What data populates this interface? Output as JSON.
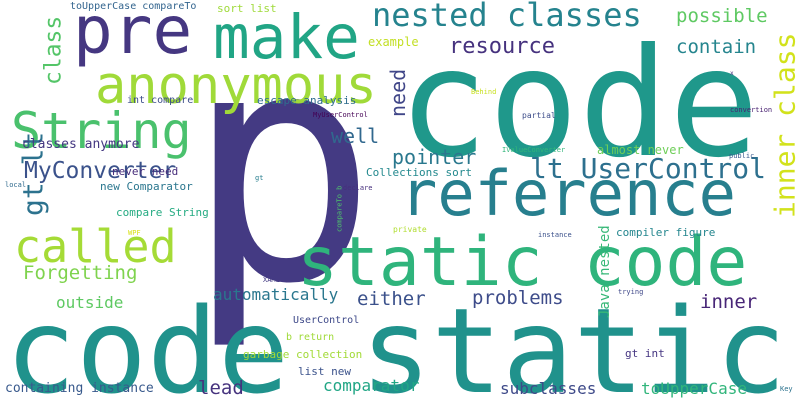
{
  "words": [
    {
      "text": "p",
      "color": "#443a83"
    },
    {
      "text": "code",
      "color": "#1f988b"
    },
    {
      "text": "code static",
      "color": "#20928c"
    },
    {
      "text": "pre",
      "color": "#453781"
    },
    {
      "text": "make",
      "color": "#21a585"
    },
    {
      "text": "anonymous",
      "color": "#a0da39"
    },
    {
      "text": "static code",
      "color": "#2fb47c"
    },
    {
      "text": "reference",
      "color": "#277f8e"
    },
    {
      "text": "String",
      "color": "#4ac16d"
    },
    {
      "text": "called",
      "color": "#a5db36"
    },
    {
      "text": "nested classes",
      "color": "#25838e"
    },
    {
      "text": "lt UserControl",
      "color": "#2d708e"
    },
    {
      "text": "inner class",
      "color": "#d2e21b"
    },
    {
      "text": "MyConverter",
      "color": "#3b528b"
    },
    {
      "text": "gt lt",
      "color": "#2c728e"
    },
    {
      "text": "resource",
      "color": "#46327e"
    },
    {
      "text": "class",
      "color": "#54c568"
    },
    {
      "text": "possible",
      "color": "#5ec962"
    },
    {
      "text": "contain",
      "color": "#25858e"
    },
    {
      "text": "well",
      "color": "#31688e"
    },
    {
      "text": "pointer",
      "color": "#2a788e"
    },
    {
      "text": "need",
      "color": "#404688"
    },
    {
      "text": "Forgetting",
      "color": "#7fd34e"
    },
    {
      "text": "problems",
      "color": "#3e4c8a"
    },
    {
      "text": "inner",
      "color": "#482677"
    },
    {
      "text": "either",
      "color": "#3b518b"
    },
    {
      "text": "lead",
      "color": "#46337e"
    },
    {
      "text": "automatically",
      "color": "#2a778e"
    },
    {
      "text": "outside",
      "color": "#5ec962"
    },
    {
      "text": "comparator",
      "color": "#21a685"
    },
    {
      "text": "subclasses",
      "color": "#3e4a89"
    },
    {
      "text": "toUpperCase",
      "color": "#31b57b"
    },
    {
      "text": "containing instance",
      "color": "#38598c"
    },
    {
      "text": "classes anymore",
      "color": "#453882"
    },
    {
      "text": "Java nested",
      "color": "#37b878"
    },
    {
      "text": "example",
      "color": "#c2df23"
    },
    {
      "text": "sort list",
      "color": "#9fda3a"
    },
    {
      "text": "toUpperCase compareTo",
      "color": "#32648e"
    },
    {
      "text": "int compare",
      "color": "#3d4e8a"
    },
    {
      "text": "escape analysis",
      "color": "#2f6c8e"
    },
    {
      "text": "Collections sort",
      "color": "#23898e"
    },
    {
      "text": "almost never",
      "color": "#6ece58"
    },
    {
      "text": "compiler figure",
      "color": "#24868e"
    },
    {
      "text": "garbage collection",
      "color": "#a2da37"
    },
    {
      "text": "new Comparator",
      "color": "#2a768e"
    },
    {
      "text": "never need",
      "color": "#472d7b"
    },
    {
      "text": "compare String",
      "color": "#25ab82"
    },
    {
      "text": "list new",
      "color": "#3b528b"
    },
    {
      "text": "gt int",
      "color": "#453581"
    },
    {
      "text": "UserControl",
      "color": "#3e4989"
    },
    {
      "text": "b return",
      "color": "#a0da39"
    },
    {
      "text": "IValueConverter",
      "color": "#32b67a"
    },
    {
      "text": "MyUserControl",
      "color": "#440154"
    },
    {
      "text": "compareTo b",
      "color": "#4ec36b"
    },
    {
      "text": "partial",
      "color": "#3d4d8a"
    },
    {
      "text": "private",
      "color": "#b0dd2f"
    },
    {
      "text": "declare",
      "color": "#472f7d"
    },
    {
      "text": "instance",
      "color": "#3b518b"
    },
    {
      "text": "public",
      "color": "#38598c"
    },
    {
      "text": "convertion",
      "color": "#482071"
    },
    {
      "text": "local",
      "color": "#306a8e"
    },
    {
      "text": "gt",
      "color": "#277e8e"
    },
    {
      "text": "Behind",
      "color": "#c8e020"
    },
    {
      "text": "XAML",
      "color": "#443b84"
    },
    {
      "text": "WPF",
      "color": "#d8e219"
    },
    {
      "text": "trying",
      "color": "#3f4889"
    },
    {
      "text": "Key",
      "color": "#2c728e"
    },
    {
      "text": "x",
      "color": "#46307e"
    }
  ]
}
